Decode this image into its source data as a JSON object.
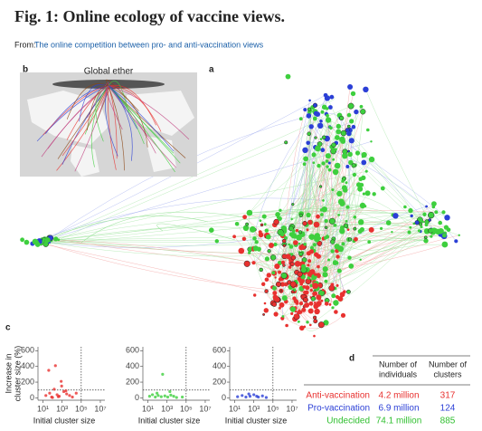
{
  "header": {
    "title": "Fig. 1: Online ecology of vaccine views.",
    "source_prefix": "From:",
    "source_link": "The online competition between pro- and anti-vaccination views"
  },
  "panels": {
    "a": "a",
    "b": "b",
    "c": "c",
    "d": "d"
  },
  "map": {
    "label": "Global ether"
  },
  "chart_data": [
    {
      "type": "scatter",
      "color": "#e8312f",
      "ylabel": [
        "Increase in",
        "cluster size (%)"
      ],
      "xlabel": "Initial cluster size",
      "xscale": "log",
      "x": [
        20,
        50,
        80,
        150,
        300,
        500,
        900,
        1500,
        3000,
        6000,
        12000,
        40,
        200,
        800,
        2500,
        30000,
        100,
        400
      ],
      "y": [
        30,
        60,
        10,
        110,
        40,
        20,
        150,
        80,
        50,
        30,
        10,
        350,
        410,
        210,
        90,
        60,
        5,
        15
      ],
      "xlim": [
        3,
        30000000
      ],
      "ylim": [
        -30,
        650
      ],
      "yticks": [
        0,
        200,
        400,
        600
      ],
      "xticks": [
        {
          "value": 10,
          "label": "10¹"
        },
        {
          "value": 1000,
          "label": "10³"
        },
        {
          "value": 100000,
          "label": "10⁵"
        },
        {
          "value": 10000000,
          "label": "10⁷"
        }
      ],
      "hline": 100,
      "vline": 100000
    },
    {
      "type": "scatter",
      "color": "#3ecf3e",
      "xlabel": "Initial cluster size",
      "xscale": "log",
      "x": [
        15,
        30,
        60,
        120,
        250,
        600,
        1200,
        2500,
        5000,
        10000,
        40000,
        90,
        350,
        2000
      ],
      "y": [
        20,
        40,
        10,
        30,
        15,
        25,
        10,
        35,
        20,
        5,
        10,
        60,
        300,
        80
      ],
      "xlim": [
        3,
        30000000
      ],
      "ylim": [
        -30,
        650
      ],
      "yticks": [
        0,
        200,
        400,
        600
      ],
      "xticks": [
        {
          "value": 10,
          "label": "10¹"
        },
        {
          "value": 1000,
          "label": "10³"
        },
        {
          "value": 100000,
          "label": "10⁵"
        },
        {
          "value": 10000000,
          "label": "10⁷"
        }
      ],
      "hline": 100,
      "vline": 100000
    },
    {
      "type": "scatter",
      "color": "#2b3fd6",
      "xlabel": "Initial cluster size",
      "xscale": "log",
      "x": [
        20,
        60,
        150,
        400,
        1000,
        3000,
        8000,
        20000,
        300,
        2000
      ],
      "y": [
        15,
        30,
        10,
        20,
        40,
        10,
        25,
        5,
        50,
        20
      ],
      "xlim": [
        3,
        30000000
      ],
      "ylim": [
        -30,
        650
      ],
      "yticks": [
        0,
        200,
        400,
        600
      ],
      "xticks": [
        {
          "value": 10,
          "label": "10¹"
        },
        {
          "value": 1000,
          "label": "10³"
        },
        {
          "value": 100000,
          "label": "10⁵"
        },
        {
          "value": 10000000,
          "label": "10⁷"
        }
      ],
      "hline": 100,
      "vline": 100000
    }
  ],
  "table": {
    "columns": [
      [
        "Number of",
        "individuals"
      ],
      [
        "Number of",
        "clusters"
      ]
    ],
    "rows": [
      {
        "name": "Anti-vaccination",
        "color": "#e8312f",
        "individuals": "4.2 million",
        "clusters": 317
      },
      {
        "name": "Pro-vaccination",
        "color": "#2b3fd6",
        "individuals": "6.9 million",
        "clusters": 124
      },
      {
        "name": "Undecided",
        "color": "#2fbf2f",
        "individuals": "74.1 million",
        "clusters": 885
      }
    ]
  }
}
